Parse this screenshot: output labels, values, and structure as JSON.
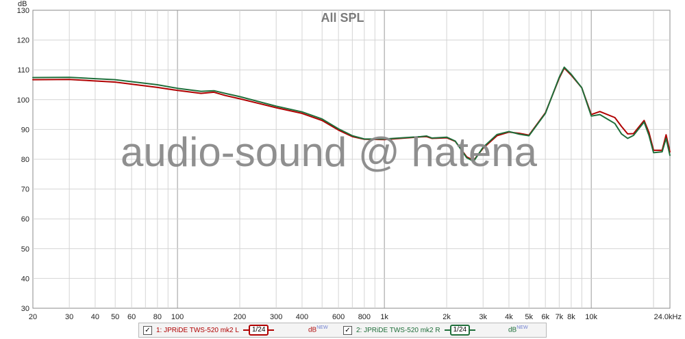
{
  "chart_data": {
    "type": "line",
    "title": "All SPL",
    "ylabel": "dB",
    "xunit": "kHz",
    "xscale": "log",
    "xlim": [
      20,
      24000
    ],
    "ylim": [
      30,
      130
    ],
    "grid": true,
    "yticks": [
      30,
      40,
      50,
      60,
      70,
      80,
      90,
      100,
      110,
      120,
      130
    ],
    "xtick_labels": [
      {
        "v": 20,
        "label": "20"
      },
      {
        "v": 30,
        "label": "30"
      },
      {
        "v": 40,
        "label": "40"
      },
      {
        "v": 50,
        "label": "50"
      },
      {
        "v": 60,
        "label": "60"
      },
      {
        "v": 80,
        "label": "80"
      },
      {
        "v": 100,
        "label": "100"
      },
      {
        "v": 200,
        "label": "200"
      },
      {
        "v": 300,
        "label": "300"
      },
      {
        "v": 400,
        "label": "400"
      },
      {
        "v": 600,
        "label": "600"
      },
      {
        "v": 800,
        "label": "800"
      },
      {
        "v": 1000,
        "label": "1k"
      },
      {
        "v": 2000,
        "label": "2k"
      },
      {
        "v": 3000,
        "label": "3k"
      },
      {
        "v": 4000,
        "label": "4k"
      },
      {
        "v": 5000,
        "label": "5k"
      },
      {
        "v": 6000,
        "label": "6k"
      },
      {
        "v": 7000,
        "label": "7k"
      },
      {
        "v": 8000,
        "label": "8k"
      },
      {
        "v": 10000,
        "label": "10k"
      },
      {
        "v": 24000,
        "label": "24.0kHz"
      }
    ],
    "series": [
      {
        "name": "1: JPRiDE TWS-520 mk2 L",
        "color": "#b00000",
        "x": [
          20,
          30,
          50,
          80,
          100,
          130,
          150,
          170,
          200,
          300,
          400,
          500,
          600,
          700,
          800,
          1000,
          1500,
          1600,
          1700,
          2000,
          2200,
          2500,
          2700,
          3000,
          3500,
          4000,
          4500,
          5000,
          6000,
          7000,
          7400,
          8000,
          9000,
          10000,
          11000,
          13000,
          14000,
          15000,
          16000,
          18000,
          19000,
          20000,
          22000,
          23000,
          24000
        ],
        "y": [
          106.7,
          106.8,
          105.9,
          104.1,
          103.1,
          102.1,
          102.5,
          101.4,
          100.3,
          97.3,
          95.4,
          93.0,
          89.8,
          87.6,
          86.7,
          86.6,
          87.5,
          87.6,
          87.0,
          87.2,
          86.0,
          80.8,
          79.6,
          83.7,
          87.9,
          89.1,
          88.7,
          88.1,
          95.6,
          107.2,
          110.6,
          108.2,
          104.0,
          95.0,
          96.0,
          94.0,
          91.0,
          88.5,
          88.6,
          93.0,
          89.0,
          83.0,
          83.0,
          88.2,
          82.5
        ]
      },
      {
        "name": "2: JPRiDE TWS-520 mk2 R",
        "color": "#1f6e3a",
        "x": [
          20,
          30,
          50,
          80,
          100,
          130,
          150,
          170,
          200,
          300,
          400,
          500,
          600,
          700,
          800,
          1000,
          1500,
          1600,
          1700,
          2000,
          2200,
          2500,
          2700,
          3000,
          3500,
          4000,
          4500,
          5000,
          6000,
          7000,
          7400,
          8000,
          9000,
          10000,
          11000,
          13000,
          14000,
          15000,
          16000,
          18000,
          19000,
          20000,
          22000,
          23000,
          24000
        ],
        "y": [
          107.4,
          107.5,
          106.7,
          105.0,
          103.8,
          102.8,
          103.0,
          102.1,
          101.0,
          97.8,
          95.9,
          93.5,
          90.2,
          87.9,
          86.8,
          86.8,
          87.6,
          87.8,
          87.1,
          87.4,
          86.1,
          80.5,
          79.3,
          84.0,
          88.3,
          89.3,
          88.4,
          87.9,
          95.4,
          107.5,
          110.9,
          108.5,
          104.0,
          94.5,
          95.0,
          92.0,
          88.5,
          87.0,
          88.0,
          92.5,
          88.0,
          82.2,
          82.5,
          87.0,
          81.3
        ]
      }
    ],
    "annotations": [
      "audio-sound @ hatena"
    ]
  },
  "legend": {
    "item1": {
      "check": "✓",
      "label": "1: JPRiDE TWS-520 mk2 L",
      "smoothing": "1/24",
      "unit": "dB",
      "unit_sup": "NEW",
      "color": "#b00000"
    },
    "item2": {
      "check": "✓",
      "label": "2: JPRiDE TWS-520 mk2 R",
      "smoothing": "1/24",
      "unit": "dB",
      "unit_sup": "NEW",
      "color": "#1f6e3a"
    }
  }
}
